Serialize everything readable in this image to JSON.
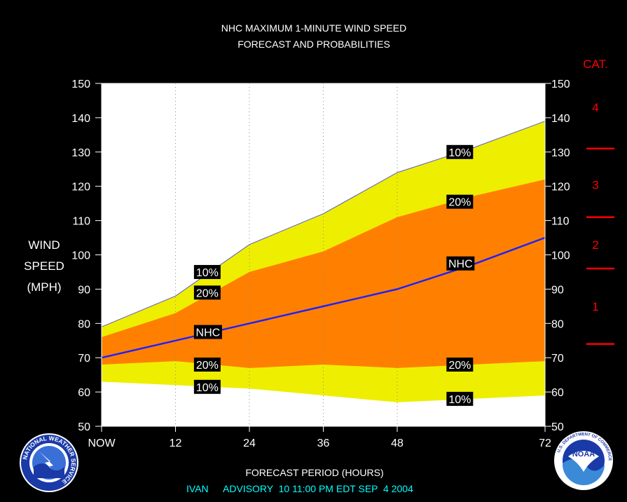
{
  "chart_data": {
    "type": "area",
    "title": "NHC MAXIMUM 1-MINUTE WIND SPEED",
    "subtitle": "FORECAST AND PROBABILITIES",
    "xlabel": "FORECAST PERIOD (HOURS)",
    "ylabel_lines": [
      "WIND",
      "SPEED",
      "(MPH)"
    ],
    "x_ticks": [
      {
        "value": 0,
        "label": "NOW"
      },
      {
        "value": 12,
        "label": "12"
      },
      {
        "value": 24,
        "label": "24"
      },
      {
        "value": 36,
        "label": "36"
      },
      {
        "value": 48,
        "label": "48"
      },
      {
        "value": 72,
        "label": "72"
      }
    ],
    "xlim": [
      0,
      72
    ],
    "ylim": [
      50,
      150
    ],
    "y_ticks": [
      50,
      60,
      70,
      80,
      90,
      100,
      110,
      120,
      130,
      140,
      150
    ],
    "x": [
      0,
      12,
      24,
      36,
      48,
      60,
      72
    ],
    "series": [
      {
        "name": "10%",
        "role": "upper-10",
        "values": [
          79,
          88,
          103,
          112,
          124,
          131,
          139
        ]
      },
      {
        "name": "20%",
        "role": "upper-20",
        "values": [
          76,
          83,
          95,
          101,
          111,
          117,
          122
        ]
      },
      {
        "name": "NHC",
        "role": "forecast",
        "values": [
          70,
          75,
          80,
          85,
          90,
          97,
          105
        ]
      },
      {
        "name": "20%",
        "role": "lower-20",
        "values": [
          68,
          69,
          67,
          68,
          67,
          68,
          69
        ]
      },
      {
        "name": "10%",
        "role": "lower-10",
        "values": [
          63,
          62,
          61,
          59,
          57,
          58,
          59
        ]
      }
    ],
    "labels": [
      {
        "text": "10%",
        "x": 15,
        "y": 95
      },
      {
        "text": "20%",
        "x": 15,
        "y": 89
      },
      {
        "text": "NHC",
        "x": 15,
        "y": 77.5
      },
      {
        "text": "20%",
        "x": 15,
        "y": 68
      },
      {
        "text": "10%",
        "x": 15,
        "y": 61.5
      },
      {
        "text": "10%",
        "x": 56,
        "y": 130
      },
      {
        "text": "20%",
        "x": 56,
        "y": 115.5
      },
      {
        "text": "NHC",
        "x": 56,
        "y": 97.5
      },
      {
        "text": "20%",
        "x": 56,
        "y": 68
      },
      {
        "text": "10%",
        "x": 56,
        "y": 58
      }
    ],
    "grid": "dotted vertical at 12-hour marks",
    "colors": {
      "outer_band": "#eeee00",
      "inner_band": "#ff8000",
      "forecast_line": "#2020ff",
      "plot_background": "#ffffff",
      "text": "#ffffff",
      "category": "#ff0000",
      "footer": "#00ffff"
    },
    "categories_scale": {
      "title": "CAT.",
      "bands": [
        {
          "label": "4",
          "y": 143
        },
        {
          "label": "3",
          "y": 120.5
        },
        {
          "label": "2",
          "y": 103
        },
        {
          "label": "1",
          "y": 85
        }
      ],
      "boundaries": [
        74,
        96,
        111,
        131
      ]
    }
  },
  "footer": {
    "storm": "IVAN",
    "advisory": "ADVISORY  10 11:00 PM EDT SEP  4 2004"
  },
  "logos": {
    "left_text": "NATIONAL WEATHER SERVICE",
    "right_text": "NOAA",
    "right_ring": "U.S. DEPARTMENT OF COMMERCE"
  }
}
